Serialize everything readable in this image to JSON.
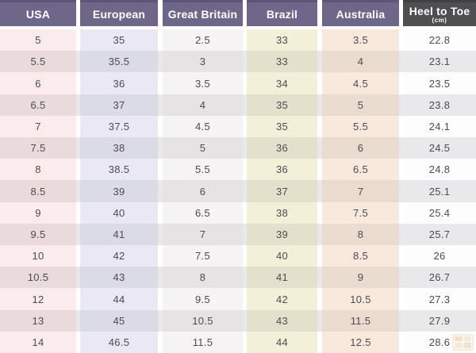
{
  "table": {
    "columns": [
      {
        "key": "usa",
        "label": "USA"
      },
      {
        "key": "european",
        "label": "European"
      },
      {
        "key": "great_britain",
        "label": "Great Britain"
      },
      {
        "key": "brazil",
        "label": "Brazil"
      },
      {
        "key": "australia",
        "label": "Australia"
      },
      {
        "key": "heel_to_toe",
        "label": "Heel to Toe",
        "sublabel": "(cm)"
      }
    ],
    "rows": [
      [
        "5",
        "35",
        "2.5",
        "33",
        "3.5",
        "22.8"
      ],
      [
        "5.5",
        "35.5",
        "3",
        "33",
        "4",
        "23.1"
      ],
      [
        "6",
        "36",
        "3.5",
        "34",
        "4.5",
        "23.5"
      ],
      [
        "6.5",
        "37",
        "4",
        "35",
        "5",
        "23.8"
      ],
      [
        "7",
        "37.5",
        "4.5",
        "35",
        "5.5",
        "24.1"
      ],
      [
        "7.5",
        "38",
        "5",
        "36",
        "6",
        "24.5"
      ],
      [
        "8",
        "38.5",
        "5.5",
        "36",
        "6.5",
        "24.8"
      ],
      [
        "8.5",
        "39",
        "6",
        "37",
        "7",
        "25.1"
      ],
      [
        "9",
        "40",
        "6.5",
        "38",
        "7.5",
        "25.4"
      ],
      [
        "9.5",
        "41",
        "7",
        "39",
        "8",
        "25.7"
      ],
      [
        "10",
        "42",
        "7.5",
        "40",
        "8.5",
        "26"
      ],
      [
        "10.5",
        "43",
        "8",
        "41",
        "9",
        "26.7"
      ],
      [
        "12",
        "44",
        "9.5",
        "42",
        "10.5",
        "27.3"
      ],
      [
        "13",
        "45",
        "10.5",
        "43",
        "11.5",
        "27.9"
      ],
      [
        "14",
        "46.5",
        "11.5",
        "44",
        "12.5",
        "28.6"
      ]
    ]
  },
  "colors": {
    "header_purple": "#6f6789",
    "header_dark": "#4f4e50",
    "tint_usa": "#f9eceb",
    "tint_european": "#e9e8f4",
    "tint_great_britain": "#f5f3f4",
    "tint_brazil": "#f1f0d9",
    "tint_australia": "#f8e9dc",
    "tint_heel_to_toe": "#fdfdfd",
    "stripe_gray": "#e9e7ea",
    "text_data": "#4f4a52",
    "watermark_tan": "#eed7b9"
  },
  "watermark": {
    "icon": "table-grid-icon"
  }
}
